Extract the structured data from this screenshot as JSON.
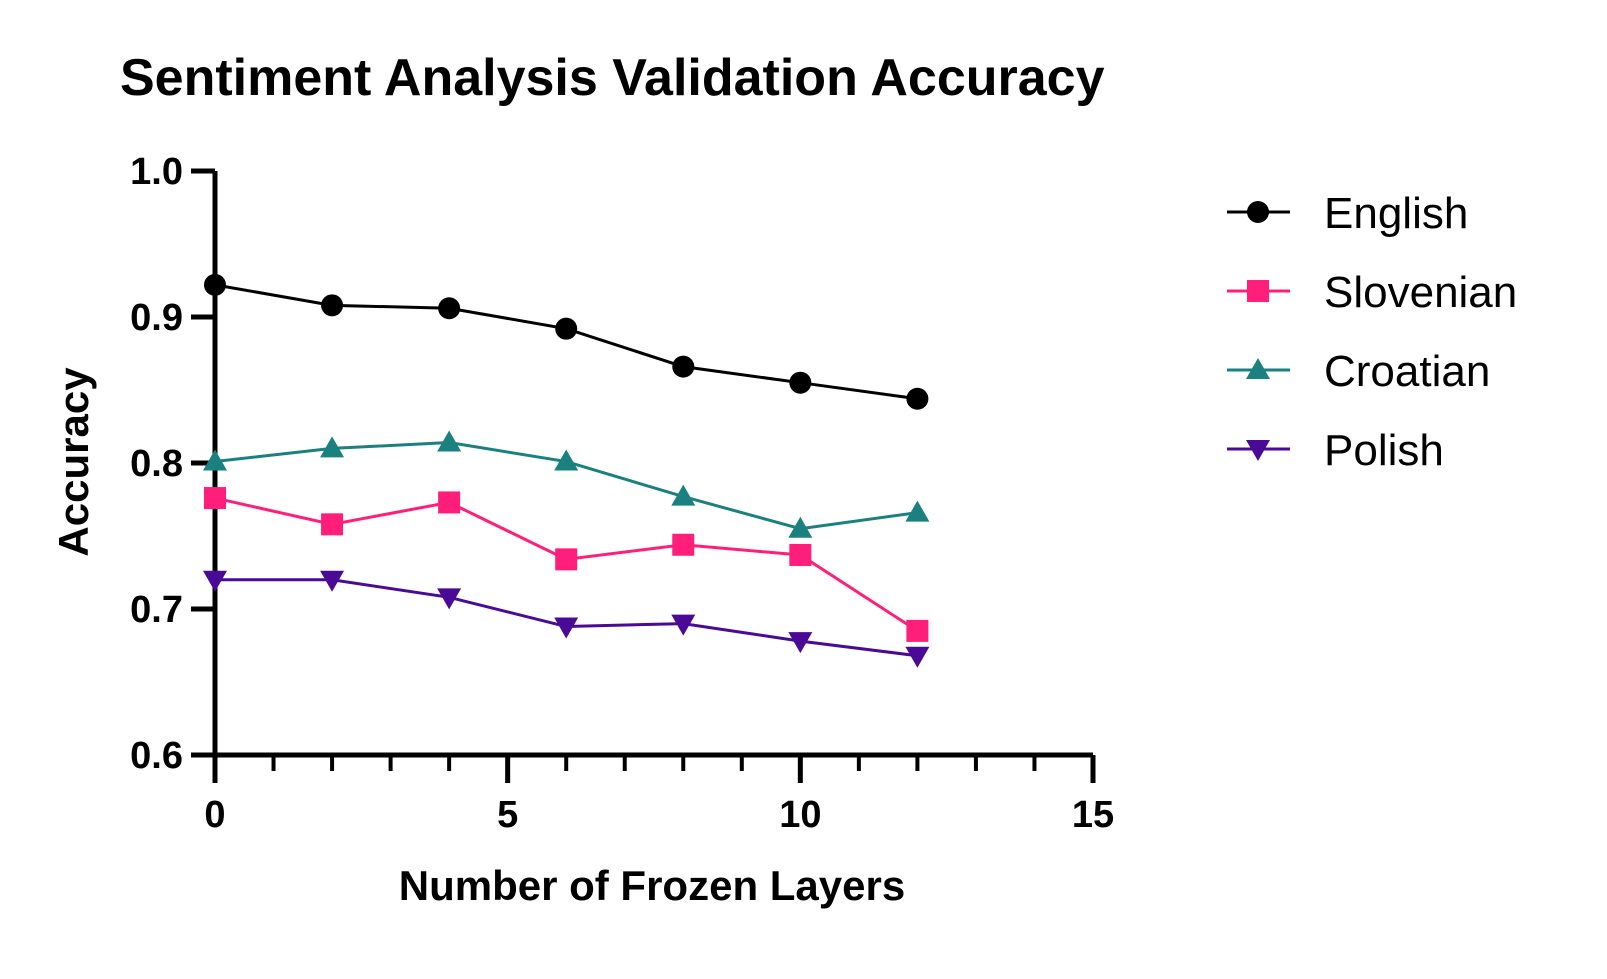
{
  "chart_data": {
    "type": "line",
    "title": "Sentiment Analysis Validation Accuracy",
    "xlabel": "Number of Frozen  Layers",
    "ylabel": "Accuracy",
    "xlim": [
      0,
      15
    ],
    "ylim": [
      0.6,
      1.0
    ],
    "x_major_ticks": [
      0,
      5,
      10,
      15
    ],
    "x_minor_ticks": [
      1,
      2,
      3,
      4,
      6,
      7,
      8,
      9,
      11,
      12,
      13,
      14
    ],
    "x_tick_labels": [
      "0",
      "5",
      "10",
      "15"
    ],
    "y_ticks": [
      0.6,
      0.7,
      0.8,
      0.9,
      1.0
    ],
    "y_tick_labels": [
      "0.6",
      "0.7",
      "0.8",
      "0.9",
      "1.0"
    ],
    "grid": false,
    "legend_position": "right",
    "x": [
      0,
      2,
      4,
      6,
      8,
      10,
      12
    ],
    "series": [
      {
        "name": "English",
        "marker": "circle",
        "color": "#000000",
        "values": [
          0.922,
          0.908,
          0.906,
          0.892,
          0.866,
          0.855,
          0.844
        ]
      },
      {
        "name": "Slovenian",
        "marker": "square",
        "color": "#ff1f7a",
        "values": [
          0.776,
          0.758,
          0.773,
          0.734,
          0.744,
          0.737,
          0.685
        ]
      },
      {
        "name": "Croatian",
        "marker": "triangle-up",
        "color": "#1a8080",
        "values": [
          0.801,
          0.81,
          0.814,
          0.801,
          0.777,
          0.755,
          0.766
        ]
      },
      {
        "name": "Polish",
        "marker": "triangle-down",
        "color": "#4b0a96",
        "values": [
          0.72,
          0.72,
          0.708,
          0.688,
          0.69,
          0.678,
          0.668
        ]
      }
    ]
  }
}
